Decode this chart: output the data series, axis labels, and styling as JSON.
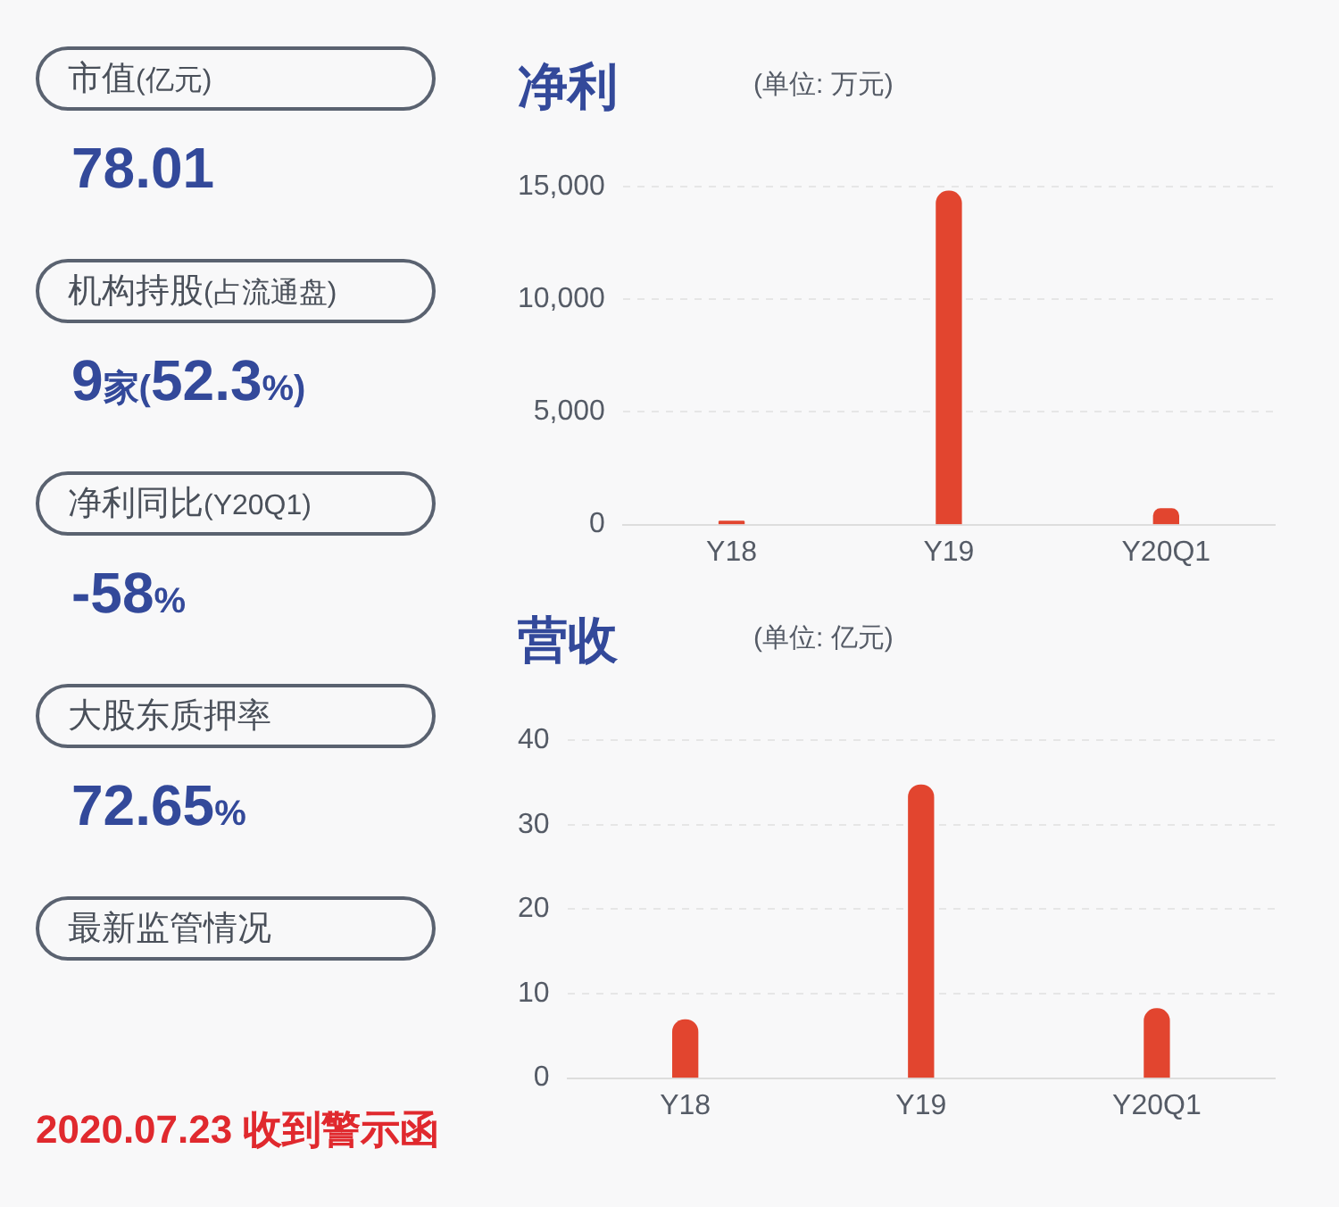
{
  "chart_data": [
    {
      "type": "other",
      "annotations": [
        "市值(亿元)",
        "78.01",
        "机构持股(占流通盘)",
        "9家(52.3%)",
        "净利同比(Y20Q1)",
        "-58%",
        "大股东质押率",
        "72.65%",
        "最新监管情况",
        "2020.07.23 收到警示函"
      ]
    },
    {
      "type": "bar",
      "title": "净利",
      "subtitle": "(单位: 万元)",
      "categories": [
        "Y18",
        "Y19",
        "Y20Q1"
      ],
      "series": [
        {
          "color": "#e2452f",
          "values": [
            150,
            14800,
            700
          ]
        }
      ],
      "ylim": [
        0,
        15000
      ],
      "yticks": [
        0,
        {
          "value": 5000,
          "label": "5,000"
        },
        {
          "value": 10000,
          "label": "10,000"
        },
        {
          "value": 15000,
          "label": "15,000"
        }
      ],
      "grid": "y"
    },
    {
      "type": "bar",
      "title": "营收",
      "subtitle": "(单位: 亿元)",
      "categories": [
        "Y18",
        "Y19",
        "Y20Q1"
      ],
      "series": [
        {
          "color": "#e2452f",
          "values": [
            6.9,
            34.7,
            8.2
          ]
        }
      ],
      "ylim": [
        0,
        40
      ],
      "yticks": [
        0,
        10,
        20,
        30,
        40
      ],
      "grid": "y"
    }
  ]
}
